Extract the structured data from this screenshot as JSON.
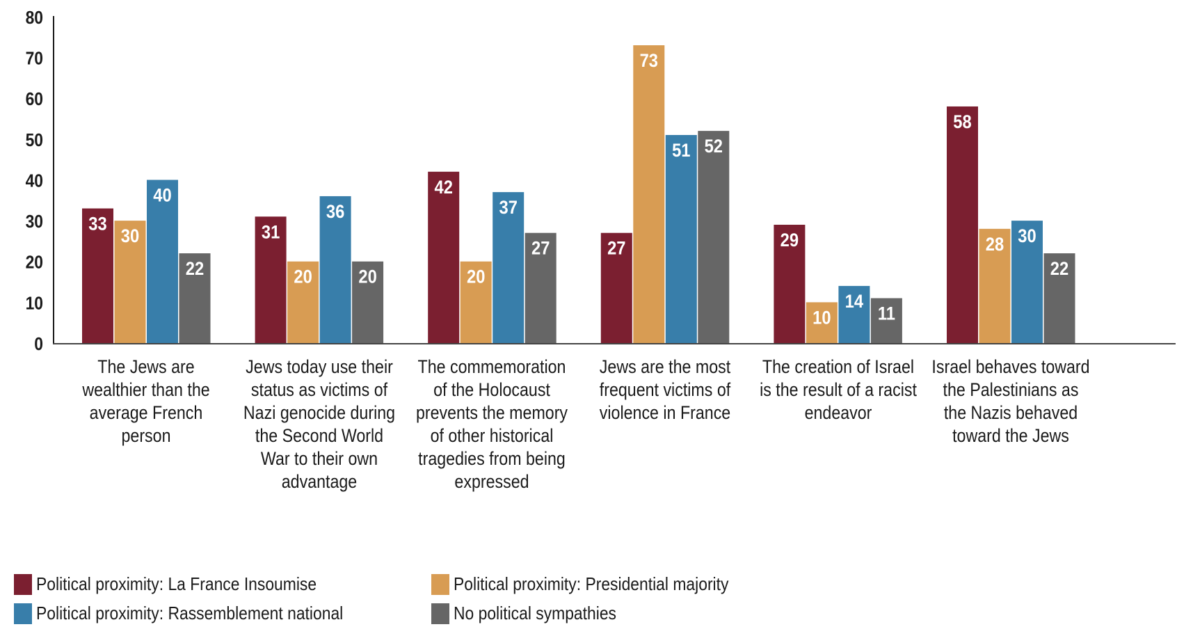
{
  "chart_data": {
    "type": "bar",
    "title": "",
    "xlabel": "",
    "ylabel": "",
    "ylim": [
      0,
      80
    ],
    "yticks": [
      0,
      10,
      20,
      30,
      40,
      50,
      60,
      70,
      80
    ],
    "grid": false,
    "legend_position": "bottom-left",
    "categories": [
      "The Jews are wealthier than the average French person",
      "Jews today use their status as victims of Nazi genocide during the Second World War to their own advantage",
      "The commemoration of the Holocaust prevents the memory of other historical tragedies from being expressed",
      "Jews are the most frequent victims of violence in France",
      "The creation of Israel is the result of a racist endeavor",
      "Israel behaves toward the Palestinians as the Nazis behaved toward the Jews"
    ],
    "series": [
      {
        "name": "Political proximity: La France Insoumise",
        "color": "#7b1f30",
        "values": [
          33,
          31,
          42,
          27,
          29,
          58
        ]
      },
      {
        "name": "Political proximity: Presidential majority",
        "color": "#d89c53",
        "values": [
          30,
          20,
          20,
          73,
          10,
          28
        ]
      },
      {
        "name": "Political proximity: Rassemblement national",
        "color": "#387eaa",
        "values": [
          40,
          36,
          37,
          51,
          14,
          30
        ]
      },
      {
        "name": "No political sympathies",
        "color": "#666666",
        "values": [
          22,
          20,
          27,
          52,
          11,
          22
        ]
      }
    ]
  },
  "legend": {
    "items": [
      {
        "label": "Political proximity: La France Insoumise",
        "color": "#7b1f30"
      },
      {
        "label": "Political proximity: Presidential majority",
        "color": "#d89c53"
      },
      {
        "label": "Political proximity: Rassemblement national",
        "color": "#387eaa"
      },
      {
        "label": "No political sympathies",
        "color": "#666666"
      }
    ]
  }
}
